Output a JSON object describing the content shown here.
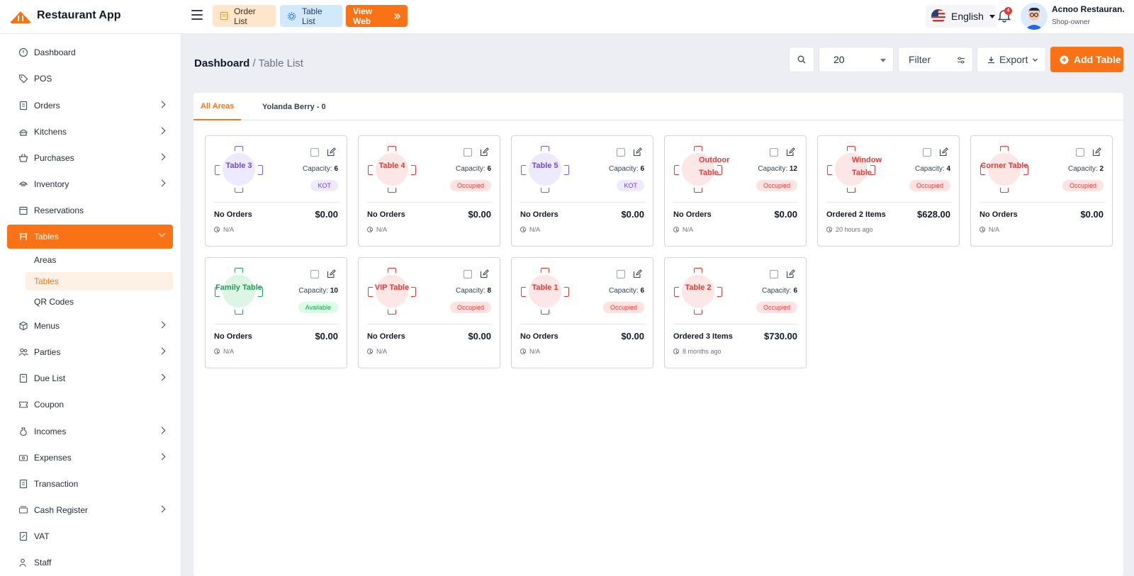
{
  "app": {
    "name": "Restaurant App"
  },
  "topbar": {
    "order_list_label": "Order List",
    "table_list_label": "Table List",
    "view_web_label": "View Web",
    "language": "English",
    "notification_count": "4",
    "user_name": "Acnoo Restauran.",
    "user_role": "Shop-owner"
  },
  "sidebar": {
    "items": [
      {
        "label": "Dashboard",
        "icon": "dashboard-icon",
        "has_children": false
      },
      {
        "label": "POS",
        "icon": "tag-icon",
        "has_children": false
      },
      {
        "label": "Orders",
        "icon": "receipt-icon",
        "has_children": true
      },
      {
        "label": "Kitchens",
        "icon": "chef-hat-icon",
        "has_children": true
      },
      {
        "label": "Purchases",
        "icon": "basket-icon",
        "has_children": true
      },
      {
        "label": "Inventory",
        "icon": "inventory-icon",
        "has_children": true
      },
      {
        "label": "Reservations",
        "icon": "calendar-icon",
        "has_children": false
      },
      {
        "label": "Tables",
        "icon": "table-icon",
        "has_children": true,
        "active": true
      },
      {
        "label": "Menus",
        "icon": "box-icon",
        "has_children": true
      },
      {
        "label": "Parties",
        "icon": "users-icon",
        "has_children": true
      },
      {
        "label": "Due List",
        "icon": "document-icon",
        "has_children": true
      },
      {
        "label": "Coupon",
        "icon": "coupon-icon",
        "has_children": false
      },
      {
        "label": "Incomes",
        "icon": "money-bag-icon",
        "has_children": true
      },
      {
        "label": "Expenses",
        "icon": "cash-icon",
        "has_children": true
      },
      {
        "label": "Transaction",
        "icon": "transaction-icon",
        "has_children": false
      },
      {
        "label": "Cash Register",
        "icon": "register-icon",
        "has_children": true
      },
      {
        "label": "VAT",
        "icon": "vat-icon",
        "has_children": false
      },
      {
        "label": "Staff",
        "icon": "staff-icon",
        "has_children": false
      }
    ],
    "tables_submenu": [
      {
        "label": "Areas",
        "active": false
      },
      {
        "label": "Tables",
        "active": true
      },
      {
        "label": "QR Codes",
        "active": false
      }
    ]
  },
  "breadcrumb": {
    "root": "Dashboard",
    "separator": " / ",
    "current": "Table List"
  },
  "toolbar": {
    "per_page": "20",
    "filter_label": "Filter",
    "export_label": "Export",
    "add_label": "Add Table"
  },
  "tabs": [
    {
      "label": "All Areas",
      "active": true
    },
    {
      "label": "Yolanda Berry - 0",
      "active": false
    }
  ],
  "colors": {
    "accent": "#f97316",
    "kot": "#7c3aed",
    "occupied": "#e53935",
    "available": "#16a34a"
  },
  "tables": [
    {
      "name": "Table 3",
      "capacity_label": "Capacity:",
      "capacity": "6",
      "status": "KOT",
      "status_type": "kot",
      "orders": "No Orders",
      "amount": "$0.00",
      "time": "N/A"
    },
    {
      "name": "Table 4",
      "capacity_label": "Capacity:",
      "capacity": "6",
      "status": "Occupied",
      "status_type": "occ",
      "orders": "No Orders",
      "amount": "$0.00",
      "time": "N/A"
    },
    {
      "name": "Table 5",
      "capacity_label": "Capacity:",
      "capacity": "6",
      "status": "KOT",
      "status_type": "kot",
      "orders": "No Orders",
      "amount": "$0.00",
      "time": "N/A"
    },
    {
      "name": "Outdoor Table",
      "capacity_label": "Capacity:",
      "capacity": "12",
      "status": "Occupied",
      "status_type": "occ",
      "orders": "No Orders",
      "amount": "$0.00",
      "time": "N/A"
    },
    {
      "name": "Window Table",
      "capacity_label": "Capacity:",
      "capacity": "4",
      "status": "Occupied",
      "status_type": "occ",
      "orders": "Ordered 2 Items",
      "amount": "$628.00",
      "time": "20 hours ago"
    },
    {
      "name": "Corner Table",
      "capacity_label": "Capacity:",
      "capacity": "2",
      "status": "Occupied",
      "status_type": "occ",
      "orders": "No Orders",
      "amount": "$0.00",
      "time": "N/A"
    },
    {
      "name": "Family Table",
      "capacity_label": "Capacity:",
      "capacity": "10",
      "status": "Available",
      "status_type": "avl",
      "orders": "No Orders",
      "amount": "$0.00",
      "time": "N/A"
    },
    {
      "name": "VIP Table",
      "capacity_label": "Capacity:",
      "capacity": "8",
      "status": "Occupied",
      "status_type": "occ",
      "orders": "No Orders",
      "amount": "$0.00",
      "time": "N/A"
    },
    {
      "name": "Table 1",
      "capacity_label": "Capacity:",
      "capacity": "6",
      "status": "Occupied",
      "status_type": "occ",
      "orders": "No Orders",
      "amount": "$0.00",
      "time": "N/A"
    },
    {
      "name": "Table 2",
      "capacity_label": "Capacity:",
      "capacity": "6",
      "status": "Occupied",
      "status_type": "occ",
      "orders": "Ordered 3 Items",
      "amount": "$730.00",
      "time": "8 months ago"
    }
  ]
}
